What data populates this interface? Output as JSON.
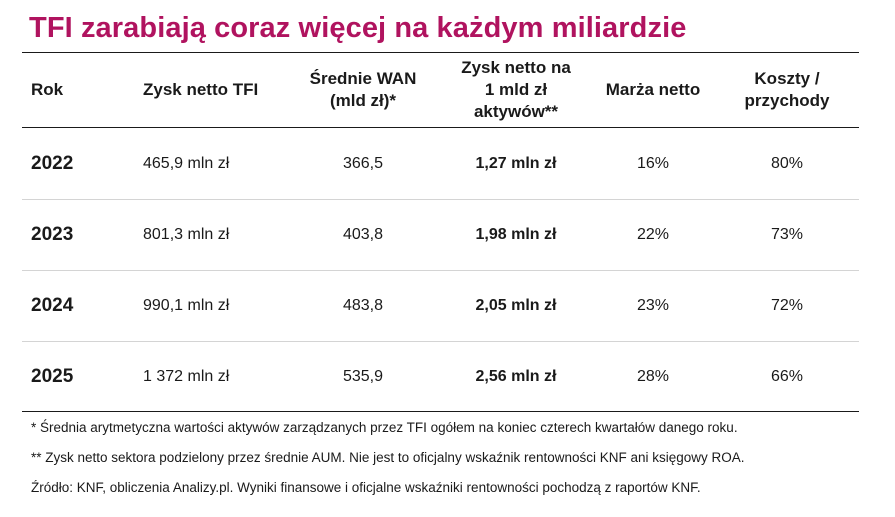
{
  "title": "TFI zarabiają coraz więcej na każdym miliardzie",
  "table": {
    "headers": {
      "year": "Rok",
      "net_profit": "Zysk netto TFI",
      "avg_aum_line1": "Średnie WAN",
      "avg_aum_line2": "(mld zł)*",
      "profit_per_bn_line1": "Zysk netto na",
      "profit_per_bn_line2": "1 mld zł",
      "profit_per_bn_line3": "aktywów**",
      "net_margin": "Marża netto",
      "cost_income_line1": "Koszty /",
      "cost_income_line2": "przychody"
    },
    "rows": [
      {
        "year": "2022",
        "net_profit": "465,9 mln zł",
        "avg_aum": "366,5",
        "profit_per_bn": "1,27 mln zł",
        "net_margin": "16%",
        "cost_income": "80%"
      },
      {
        "year": "2023",
        "net_profit": "801,3 mln zł",
        "avg_aum": "403,8",
        "profit_per_bn": "1,98 mln zł",
        "net_margin": "22%",
        "cost_income": "73%"
      },
      {
        "year": "2024",
        "net_profit": "990,1 mln zł",
        "avg_aum": "483,8",
        "profit_per_bn": "2,05 mln zł",
        "net_margin": "23%",
        "cost_income": "72%"
      },
      {
        "year": "2025",
        "net_profit": "1 372 mln zł",
        "avg_aum": "535,9",
        "profit_per_bn": "2,56 mln zł",
        "net_margin": "28%",
        "cost_income": "66%"
      }
    ]
  },
  "footnotes": {
    "note1": "* Średnia arytmetyczna wartości aktywów zarządzanych przez TFI ogółem na koniec czterech kwartałów danego roku.",
    "note2": "** Zysk netto sektora podzielony przez średnie AUM. Nie jest to oficjalny wskaźnik rentowności KNF ani księgowy ROA.",
    "source": "Źródło: KNF, obliczenia Analizy.pl. Wyniki finansowe i oficjalne wskaźniki rentowności pochodzą z raportów KNF."
  },
  "colors": {
    "title": "#b0135f",
    "text": "#1a1a1a",
    "row_separator": "#d4d4d4"
  }
}
